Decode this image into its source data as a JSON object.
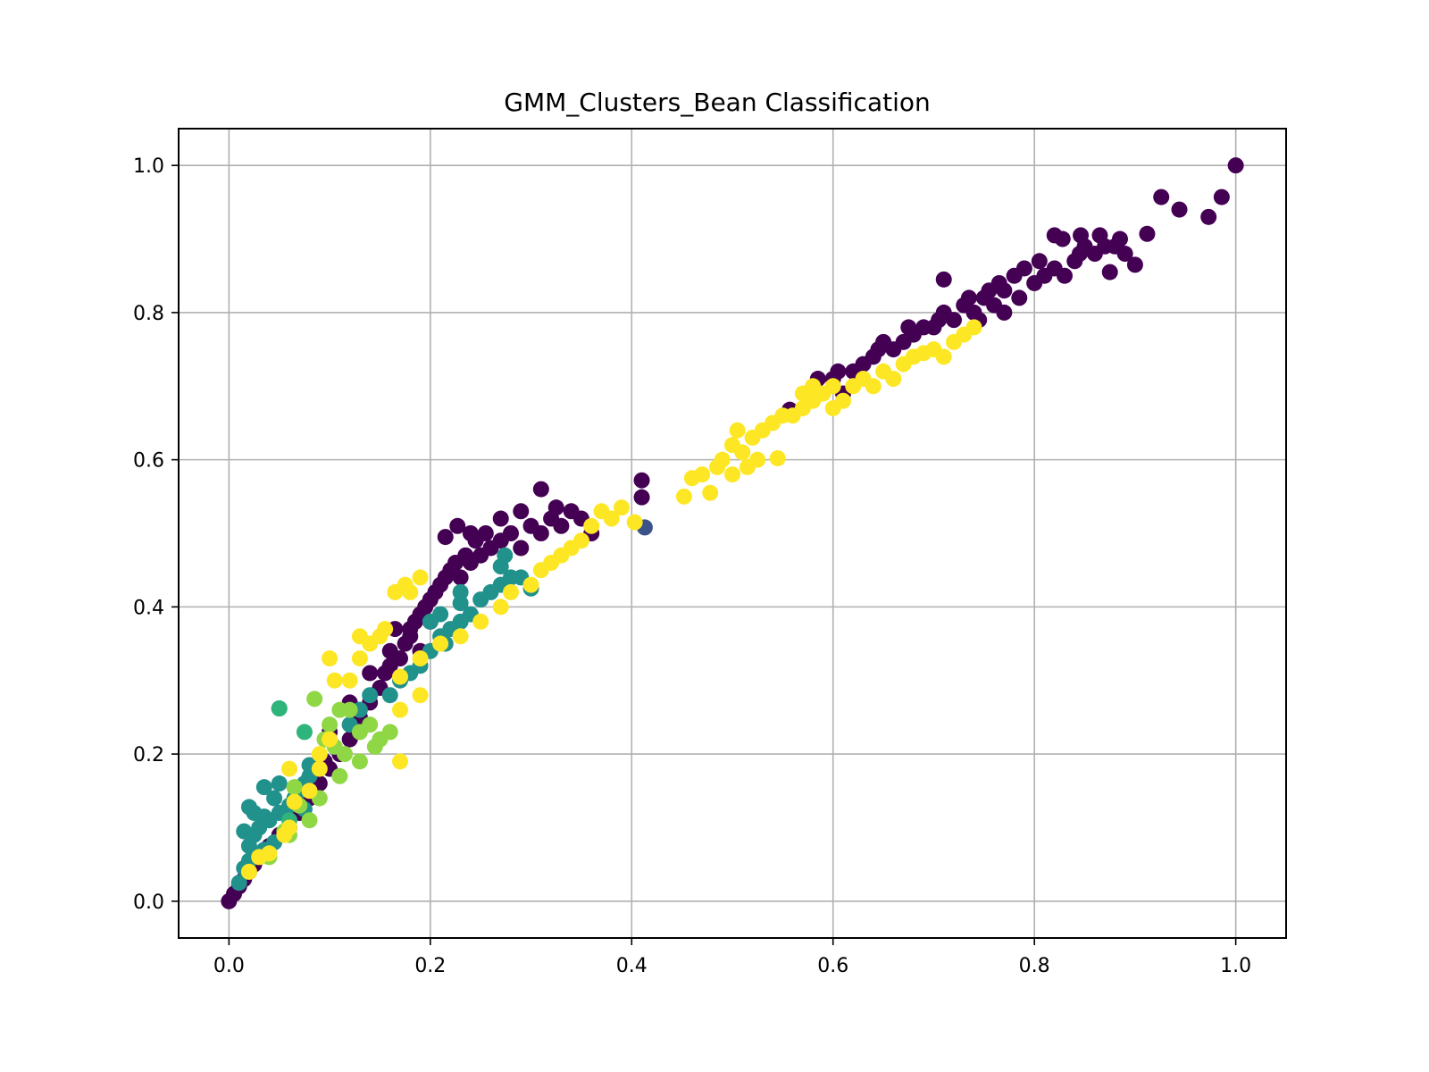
{
  "chart_data": {
    "type": "scatter",
    "title": "GMM_Clusters_Bean Classification",
    "xlabel": "",
    "ylabel": "",
    "xlim": [
      -0.05,
      1.05
    ],
    "ylim": [
      -0.05,
      1.05
    ],
    "x_ticks": [
      0.0,
      0.2,
      0.4,
      0.6,
      0.8,
      1.0
    ],
    "y_ticks": [
      0.0,
      0.2,
      0.4,
      0.6,
      0.8,
      1.0
    ],
    "x_tick_labels": [
      "0.0",
      "0.2",
      "0.4",
      "0.6",
      "0.8",
      "1.0"
    ],
    "y_tick_labels": [
      "0.0",
      "0.2",
      "0.4",
      "0.6",
      "0.8",
      "1.0"
    ],
    "grid": true,
    "legend": "none",
    "colormap": "viridis",
    "colors": {
      "cluster_0": "#440154",
      "cluster_1": "#3b528b",
      "cluster_2": "#21918c",
      "cluster_3": "#2fb47c",
      "cluster_4": "#8fd744",
      "cluster_5": "#fde725"
    },
    "series": [
      {
        "color": "#440154",
        "points": [
          [
            0.0,
            0.0
          ],
          [
            0.005,
            0.01
          ],
          [
            0.01,
            0.02
          ],
          [
            0.015,
            0.03
          ],
          [
            0.02,
            0.04
          ],
          [
            0.025,
            0.05
          ],
          [
            0.03,
            0.06
          ],
          [
            0.035,
            0.065
          ],
          [
            0.04,
            0.075
          ],
          [
            0.05,
            0.09
          ],
          [
            0.06,
            0.1
          ],
          [
            0.07,
            0.12
          ],
          [
            0.08,
            0.14
          ],
          [
            0.09,
            0.16
          ],
          [
            0.095,
            0.19
          ],
          [
            0.1,
            0.18
          ],
          [
            0.11,
            0.2
          ],
          [
            0.12,
            0.22
          ],
          [
            0.13,
            0.25
          ],
          [
            0.14,
            0.27
          ],
          [
            0.15,
            0.29
          ],
          [
            0.155,
            0.31
          ],
          [
            0.16,
            0.32
          ],
          [
            0.165,
            0.37
          ],
          [
            0.17,
            0.33
          ],
          [
            0.175,
            0.35
          ],
          [
            0.18,
            0.36
          ],
          [
            0.185,
            0.38
          ],
          [
            0.19,
            0.39
          ],
          [
            0.195,
            0.4
          ],
          [
            0.2,
            0.41
          ],
          [
            0.205,
            0.42
          ],
          [
            0.21,
            0.43
          ],
          [
            0.215,
            0.44
          ],
          [
            0.22,
            0.45
          ],
          [
            0.225,
            0.46
          ],
          [
            0.23,
            0.44
          ],
          [
            0.235,
            0.47
          ],
          [
            0.24,
            0.46
          ],
          [
            0.245,
            0.49
          ],
          [
            0.25,
            0.47
          ],
          [
            0.255,
            0.5
          ],
          [
            0.26,
            0.48
          ],
          [
            0.27,
            0.49
          ],
          [
            0.28,
            0.5
          ],
          [
            0.29,
            0.48
          ],
          [
            0.3,
            0.51
          ],
          [
            0.31,
            0.5
          ],
          [
            0.32,
            0.52
          ],
          [
            0.33,
            0.51
          ],
          [
            0.34,
            0.53
          ],
          [
            0.35,
            0.52
          ],
          [
            0.36,
            0.5
          ],
          [
            0.27,
            0.52
          ],
          [
            0.29,
            0.53
          ],
          [
            0.31,
            0.56
          ],
          [
            0.325,
            0.535
          ],
          [
            0.227,
            0.51
          ],
          [
            0.24,
            0.5
          ],
          [
            0.215,
            0.495
          ],
          [
            0.18,
            0.37
          ],
          [
            0.19,
            0.34
          ],
          [
            0.2,
            0.38
          ],
          [
            0.16,
            0.34
          ],
          [
            0.14,
            0.31
          ],
          [
            0.12,
            0.27
          ],
          [
            0.1,
            0.23
          ],
          [
            0.41,
            0.572
          ],
          [
            0.41,
            0.549
          ],
          [
            0.557,
            0.668
          ],
          [
            0.585,
            0.71
          ],
          [
            0.6,
            0.71
          ],
          [
            0.605,
            0.72
          ],
          [
            0.61,
            0.69
          ],
          [
            0.62,
            0.72
          ],
          [
            0.63,
            0.73
          ],
          [
            0.64,
            0.74
          ],
          [
            0.645,
            0.75
          ],
          [
            0.65,
            0.76
          ],
          [
            0.66,
            0.75
          ],
          [
            0.67,
            0.76
          ],
          [
            0.675,
            0.78
          ],
          [
            0.68,
            0.77
          ],
          [
            0.69,
            0.78
          ],
          [
            0.7,
            0.78
          ],
          [
            0.705,
            0.79
          ],
          [
            0.71,
            0.8
          ],
          [
            0.72,
            0.79
          ],
          [
            0.73,
            0.81
          ],
          [
            0.735,
            0.82
          ],
          [
            0.74,
            0.8
          ],
          [
            0.75,
            0.82
          ],
          [
            0.755,
            0.83
          ],
          [
            0.76,
            0.81
          ],
          [
            0.765,
            0.84
          ],
          [
            0.77,
            0.83
          ],
          [
            0.78,
            0.85
          ],
          [
            0.785,
            0.82
          ],
          [
            0.79,
            0.86
          ],
          [
            0.8,
            0.84
          ],
          [
            0.805,
            0.87
          ],
          [
            0.81,
            0.85
          ],
          [
            0.82,
            0.86
          ],
          [
            0.83,
            0.85
          ],
          [
            0.84,
            0.87
          ],
          [
            0.845,
            0.88
          ],
          [
            0.85,
            0.89
          ],
          [
            0.86,
            0.88
          ],
          [
            0.865,
            0.905
          ],
          [
            0.87,
            0.89
          ],
          [
            0.875,
            0.855
          ],
          [
            0.88,
            0.89
          ],
          [
            0.885,
            0.9
          ],
          [
            0.89,
            0.88
          ],
          [
            0.82,
            0.905
          ],
          [
            0.828,
            0.9
          ],
          [
            0.846,
            0.905
          ],
          [
            0.9,
            0.865
          ],
          [
            0.912,
            0.907
          ],
          [
            0.926,
            0.957
          ],
          [
            0.944,
            0.94
          ],
          [
            0.973,
            0.93
          ],
          [
            0.986,
            0.957
          ],
          [
            1.0,
            1.0
          ],
          [
            0.71,
            0.845
          ],
          [
            0.745,
            0.79
          ],
          [
            0.77,
            0.8
          ]
        ]
      },
      {
        "color": "#3b528b",
        "points": [
          [
            0.413,
            0.508
          ]
        ]
      },
      {
        "color": "#21918c",
        "points": [
          [
            0.01,
            0.025
          ],
          [
            0.015,
            0.045
          ],
          [
            0.02,
            0.055
          ],
          [
            0.02,
            0.075
          ],
          [
            0.015,
            0.095
          ],
          [
            0.025,
            0.09
          ],
          [
            0.03,
            0.1
          ],
          [
            0.025,
            0.12
          ],
          [
            0.02,
            0.128
          ],
          [
            0.035,
            0.115
          ],
          [
            0.04,
            0.11
          ],
          [
            0.035,
            0.155
          ],
          [
            0.045,
            0.14
          ],
          [
            0.05,
            0.12
          ],
          [
            0.05,
            0.16
          ],
          [
            0.06,
            0.13
          ],
          [
            0.065,
            0.14
          ],
          [
            0.07,
            0.15
          ],
          [
            0.075,
            0.16
          ],
          [
            0.08,
            0.17
          ],
          [
            0.08,
            0.185
          ],
          [
            0.05,
            0.262
          ],
          [
            0.12,
            0.24
          ],
          [
            0.13,
            0.26
          ],
          [
            0.14,
            0.28
          ],
          [
            0.16,
            0.28
          ],
          [
            0.17,
            0.3
          ],
          [
            0.18,
            0.31
          ],
          [
            0.19,
            0.32
          ],
          [
            0.2,
            0.34
          ],
          [
            0.21,
            0.36
          ],
          [
            0.215,
            0.35
          ],
          [
            0.22,
            0.37
          ],
          [
            0.23,
            0.38
          ],
          [
            0.24,
            0.39
          ],
          [
            0.25,
            0.41
          ],
          [
            0.26,
            0.42
          ],
          [
            0.27,
            0.43
          ],
          [
            0.28,
            0.44
          ],
          [
            0.27,
            0.455
          ],
          [
            0.274,
            0.47
          ],
          [
            0.29,
            0.44
          ],
          [
            0.2,
            0.38
          ],
          [
            0.21,
            0.39
          ],
          [
            0.23,
            0.405
          ],
          [
            0.3,
            0.425
          ],
          [
            0.23,
            0.42
          ],
          [
            0.075,
            0.125
          ],
          [
            0.045,
            0.08
          ],
          [
            0.035,
            0.07
          ]
        ]
      },
      {
        "color": "#2fb47c",
        "points": [
          [
            0.075,
            0.23
          ],
          [
            0.05,
            0.262
          ],
          [
            0.06,
            0.11
          ]
        ]
      },
      {
        "color": "#8fd744",
        "points": [
          [
            0.085,
            0.275
          ],
          [
            0.1,
            0.24
          ],
          [
            0.11,
            0.26
          ],
          [
            0.12,
            0.26
          ],
          [
            0.095,
            0.22
          ],
          [
            0.105,
            0.21
          ],
          [
            0.13,
            0.23
          ],
          [
            0.115,
            0.2
          ],
          [
            0.14,
            0.24
          ],
          [
            0.15,
            0.22
          ],
          [
            0.16,
            0.23
          ],
          [
            0.07,
            0.13
          ],
          [
            0.065,
            0.155
          ],
          [
            0.055,
            0.095
          ],
          [
            0.04,
            0.06
          ],
          [
            0.06,
            0.09
          ],
          [
            0.08,
            0.11
          ],
          [
            0.09,
            0.14
          ],
          [
            0.11,
            0.17
          ],
          [
            0.13,
            0.19
          ],
          [
            0.145,
            0.21
          ]
        ]
      },
      {
        "color": "#fde725",
        "points": [
          [
            0.02,
            0.04
          ],
          [
            0.03,
            0.06
          ],
          [
            0.04,
            0.065
          ],
          [
            0.055,
            0.09
          ],
          [
            0.06,
            0.1
          ],
          [
            0.065,
            0.135
          ],
          [
            0.06,
            0.18
          ],
          [
            0.08,
            0.15
          ],
          [
            0.09,
            0.2
          ],
          [
            0.09,
            0.18
          ],
          [
            0.1,
            0.22
          ],
          [
            0.105,
            0.3
          ],
          [
            0.1,
            0.33
          ],
          [
            0.12,
            0.3
          ],
          [
            0.13,
            0.33
          ],
          [
            0.13,
            0.36
          ],
          [
            0.14,
            0.35
          ],
          [
            0.15,
            0.36
          ],
          [
            0.155,
            0.37
          ],
          [
            0.165,
            0.42
          ],
          [
            0.175,
            0.43
          ],
          [
            0.18,
            0.42
          ],
          [
            0.19,
            0.44
          ],
          [
            0.17,
            0.305
          ],
          [
            0.19,
            0.33
          ],
          [
            0.21,
            0.35
          ],
          [
            0.23,
            0.36
          ],
          [
            0.25,
            0.38
          ],
          [
            0.27,
            0.4
          ],
          [
            0.28,
            0.42
          ],
          [
            0.3,
            0.43
          ],
          [
            0.31,
            0.45
          ],
          [
            0.32,
            0.46
          ],
          [
            0.33,
            0.47
          ],
          [
            0.34,
            0.48
          ],
          [
            0.35,
            0.49
          ],
          [
            0.36,
            0.51
          ],
          [
            0.37,
            0.53
          ],
          [
            0.38,
            0.52
          ],
          [
            0.39,
            0.535
          ],
          [
            0.403,
            0.515
          ],
          [
            0.17,
            0.26
          ],
          [
            0.19,
            0.28
          ],
          [
            0.17,
            0.19
          ],
          [
            0.452,
            0.55
          ],
          [
            0.46,
            0.575
          ],
          [
            0.47,
            0.58
          ],
          [
            0.478,
            0.555
          ],
          [
            0.485,
            0.59
          ],
          [
            0.49,
            0.6
          ],
          [
            0.5,
            0.62
          ],
          [
            0.505,
            0.64
          ],
          [
            0.51,
            0.61
          ],
          [
            0.52,
            0.63
          ],
          [
            0.525,
            0.6
          ],
          [
            0.53,
            0.64
          ],
          [
            0.54,
            0.65
          ],
          [
            0.545,
            0.602
          ],
          [
            0.55,
            0.66
          ],
          [
            0.56,
            0.66
          ],
          [
            0.57,
            0.67
          ],
          [
            0.58,
            0.68
          ],
          [
            0.59,
            0.69
          ],
          [
            0.6,
            0.7
          ],
          [
            0.61,
            0.68
          ],
          [
            0.62,
            0.7
          ],
          [
            0.63,
            0.71
          ],
          [
            0.64,
            0.7
          ],
          [
            0.65,
            0.72
          ],
          [
            0.66,
            0.71
          ],
          [
            0.67,
            0.73
          ],
          [
            0.68,
            0.74
          ],
          [
            0.69,
            0.745
          ],
          [
            0.7,
            0.75
          ],
          [
            0.71,
            0.74
          ],
          [
            0.72,
            0.76
          ],
          [
            0.73,
            0.77
          ],
          [
            0.74,
            0.78
          ],
          [
            0.57,
            0.69
          ],
          [
            0.58,
            0.7
          ],
          [
            0.6,
            0.67
          ],
          [
            0.5,
            0.58
          ],
          [
            0.515,
            0.59
          ]
        ]
      }
    ]
  }
}
